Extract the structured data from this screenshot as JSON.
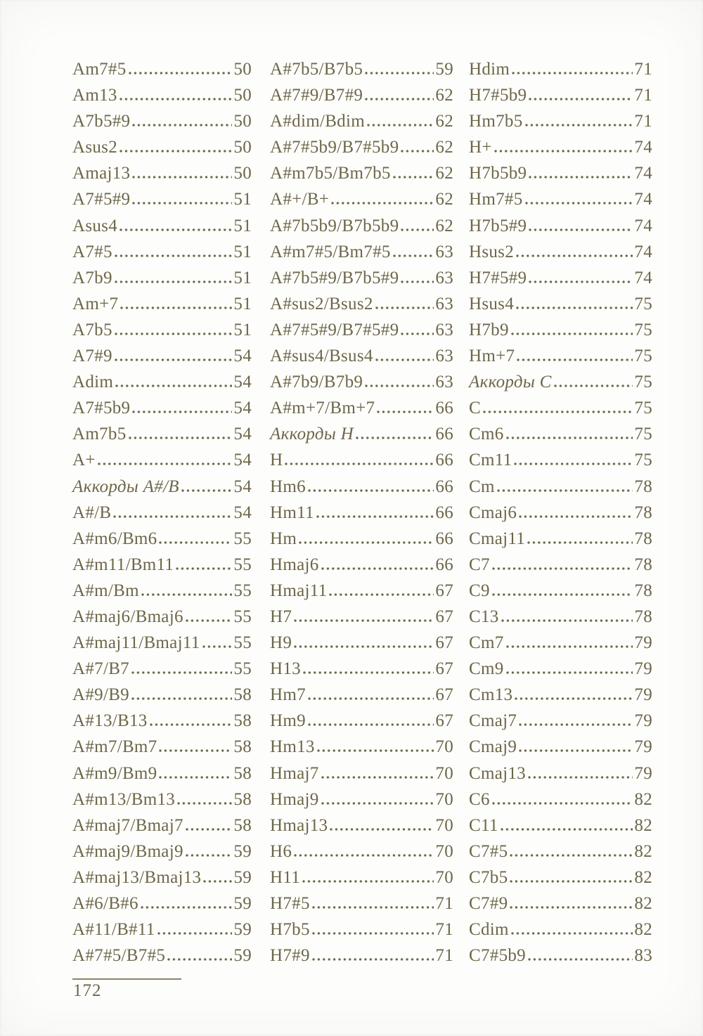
{
  "colors": {
    "text": "#6d6649",
    "page_background": "#fdfdfb",
    "footer_rule": "#8a8468"
  },
  "footer": {
    "page_number": "172"
  },
  "toc": {
    "columns": [
      {
        "entries": [
          {
            "label": "Am7#5",
            "page": "50"
          },
          {
            "label": "Am13",
            "page": "50"
          },
          {
            "label": "A7b5#9",
            "page": "50"
          },
          {
            "label": "Asus2",
            "page": "50"
          },
          {
            "label": "Amaj13",
            "page": "50"
          },
          {
            "label": "A7#5#9",
            "page": "51"
          },
          {
            "label": "Asus4",
            "page": "51"
          },
          {
            "label": "A7#5",
            "page": "51"
          },
          {
            "label": "A7b9",
            "page": "51"
          },
          {
            "label": "Am+7",
            "page": "51"
          },
          {
            "label": "A7b5",
            "page": "51"
          },
          {
            "label": "A7#9",
            "page": "54"
          },
          {
            "label": "Adim",
            "page": "54"
          },
          {
            "label": "A7#5b9",
            "page": "54"
          },
          {
            "label": "Am7b5",
            "page": "54"
          },
          {
            "label": "A+",
            "page": "54"
          },
          {
            "label": "Аккорды A#/B",
            "page": "54",
            "italic": true
          },
          {
            "label": "A#/B",
            "page": "54"
          },
          {
            "label": "A#m6/Bm6",
            "page": "55"
          },
          {
            "label": "A#m11/Bm11",
            "page": "55"
          },
          {
            "label": "A#m/Bm",
            "page": "55"
          },
          {
            "label": "A#maj6/Bmaj6",
            "page": "55"
          },
          {
            "label": "A#maj11/Bmaj11",
            "page": "55"
          },
          {
            "label": "A#7/B7",
            "page": "55"
          },
          {
            "label": "A#9/B9",
            "page": "58"
          },
          {
            "label": "A#13/B13",
            "page": "58"
          },
          {
            "label": "A#m7/Bm7",
            "page": "58"
          },
          {
            "label": "A#m9/Bm9",
            "page": "58"
          },
          {
            "label": "A#m13/Bm13",
            "page": "58"
          },
          {
            "label": "A#maj7/Bmaj7",
            "page": "58"
          },
          {
            "label": "A#maj9/Bmaj9",
            "page": "59"
          },
          {
            "label": "A#maj13/Bmaj13",
            "page": "59"
          },
          {
            "label": "A#6/B#6",
            "page": "59"
          },
          {
            "label": "A#11/B#11",
            "page": "59"
          },
          {
            "label": "A#7#5/B7#5",
            "page": "59"
          }
        ]
      },
      {
        "entries": [
          {
            "label": "A#7b5/B7b5",
            "page": "59"
          },
          {
            "label": "A#7#9/B7#9",
            "page": "62"
          },
          {
            "label": "A#dim/Bdim",
            "page": "62"
          },
          {
            "label": "A#7#5b9/B7#5b9",
            "page": "62"
          },
          {
            "label": "A#m7b5/Bm7b5",
            "page": "62"
          },
          {
            "label": "A#+/B+",
            "page": "62"
          },
          {
            "label": "A#7b5b9/B7b5b9",
            "page": "62"
          },
          {
            "label": "A#m7#5/Bm7#5",
            "page": "63"
          },
          {
            "label": "A#7b5#9/B7b5#9",
            "page": "63"
          },
          {
            "label": "A#sus2/Bsus2",
            "page": "63"
          },
          {
            "label": "A#7#5#9/B7#5#9",
            "page": "63"
          },
          {
            "label": "A#sus4/Bsus4",
            "page": "63"
          },
          {
            "label": "A#7b9/B7b9",
            "page": "63"
          },
          {
            "label": "A#m+7/Bm+7",
            "page": "66"
          },
          {
            "label": "Аккорды H",
            "page": "66",
            "italic": true
          },
          {
            "label": "H",
            "page": "66"
          },
          {
            "label": "Hm6",
            "page": "66"
          },
          {
            "label": "Hm11",
            "page": "66"
          },
          {
            "label": "Hm",
            "page": "66"
          },
          {
            "label": "Hmaj6",
            "page": "66"
          },
          {
            "label": "Hmaj11",
            "page": "67"
          },
          {
            "label": "H7",
            "page": "67"
          },
          {
            "label": "H9",
            "page": "67"
          },
          {
            "label": "H13",
            "page": "67"
          },
          {
            "label": "Hm7",
            "page": "67"
          },
          {
            "label": "Hm9",
            "page": "67"
          },
          {
            "label": "Hm13",
            "page": "70"
          },
          {
            "label": "Hmaj7",
            "page": "70"
          },
          {
            "label": "Hmaj9",
            "page": "70"
          },
          {
            "label": "Hmaj13",
            "page": "70"
          },
          {
            "label": "H6",
            "page": "70"
          },
          {
            "label": "H11",
            "page": "70"
          },
          {
            "label": "H7#5",
            "page": "71"
          },
          {
            "label": "H7b5",
            "page": "71"
          },
          {
            "label": "H7#9",
            "page": "71"
          }
        ]
      },
      {
        "entries": [
          {
            "label": "Hdim",
            "page": "71"
          },
          {
            "label": "H7#5b9",
            "page": "71"
          },
          {
            "label": "Hm7b5",
            "page": "71"
          },
          {
            "label": "H+",
            "page": "74"
          },
          {
            "label": "H7b5b9",
            "page": "74"
          },
          {
            "label": "Hm7#5",
            "page": "74"
          },
          {
            "label": "H7b5#9",
            "page": "74"
          },
          {
            "label": "Hsus2",
            "page": "74"
          },
          {
            "label": "H7#5#9",
            "page": "74"
          },
          {
            "label": "Hsus4",
            "page": "75"
          },
          {
            "label": "H7b9",
            "page": "75"
          },
          {
            "label": "Hm+7",
            "page": "75"
          },
          {
            "label": "Аккорды C",
            "page": "75",
            "italic": true
          },
          {
            "label": "C",
            "page": "75"
          },
          {
            "label": "Cm6",
            "page": "75"
          },
          {
            "label": "Cm11",
            "page": "75"
          },
          {
            "label": "Cm",
            "page": "78"
          },
          {
            "label": "Cmaj6",
            "page": "78"
          },
          {
            "label": "Cmaj11",
            "page": "78"
          },
          {
            "label": "C7",
            "page": "78"
          },
          {
            "label": "C9",
            "page": "78"
          },
          {
            "label": "C13",
            "page": "78"
          },
          {
            "label": "Cm7",
            "page": "79"
          },
          {
            "label": "Cm9",
            "page": "79"
          },
          {
            "label": "Cm13",
            "page": "79"
          },
          {
            "label": "Cmaj7",
            "page": "79"
          },
          {
            "label": "Cmaj9",
            "page": "79"
          },
          {
            "label": "Cmaj13",
            "page": "79"
          },
          {
            "label": "C6",
            "page": "82"
          },
          {
            "label": "C11",
            "page": "82"
          },
          {
            "label": "C7#5",
            "page": "82"
          },
          {
            "label": "C7b5",
            "page": "82"
          },
          {
            "label": "C7#9",
            "page": "82"
          },
          {
            "label": "Cdim",
            "page": "82"
          },
          {
            "label": "C7#5b9",
            "page": "83"
          }
        ]
      }
    ]
  }
}
